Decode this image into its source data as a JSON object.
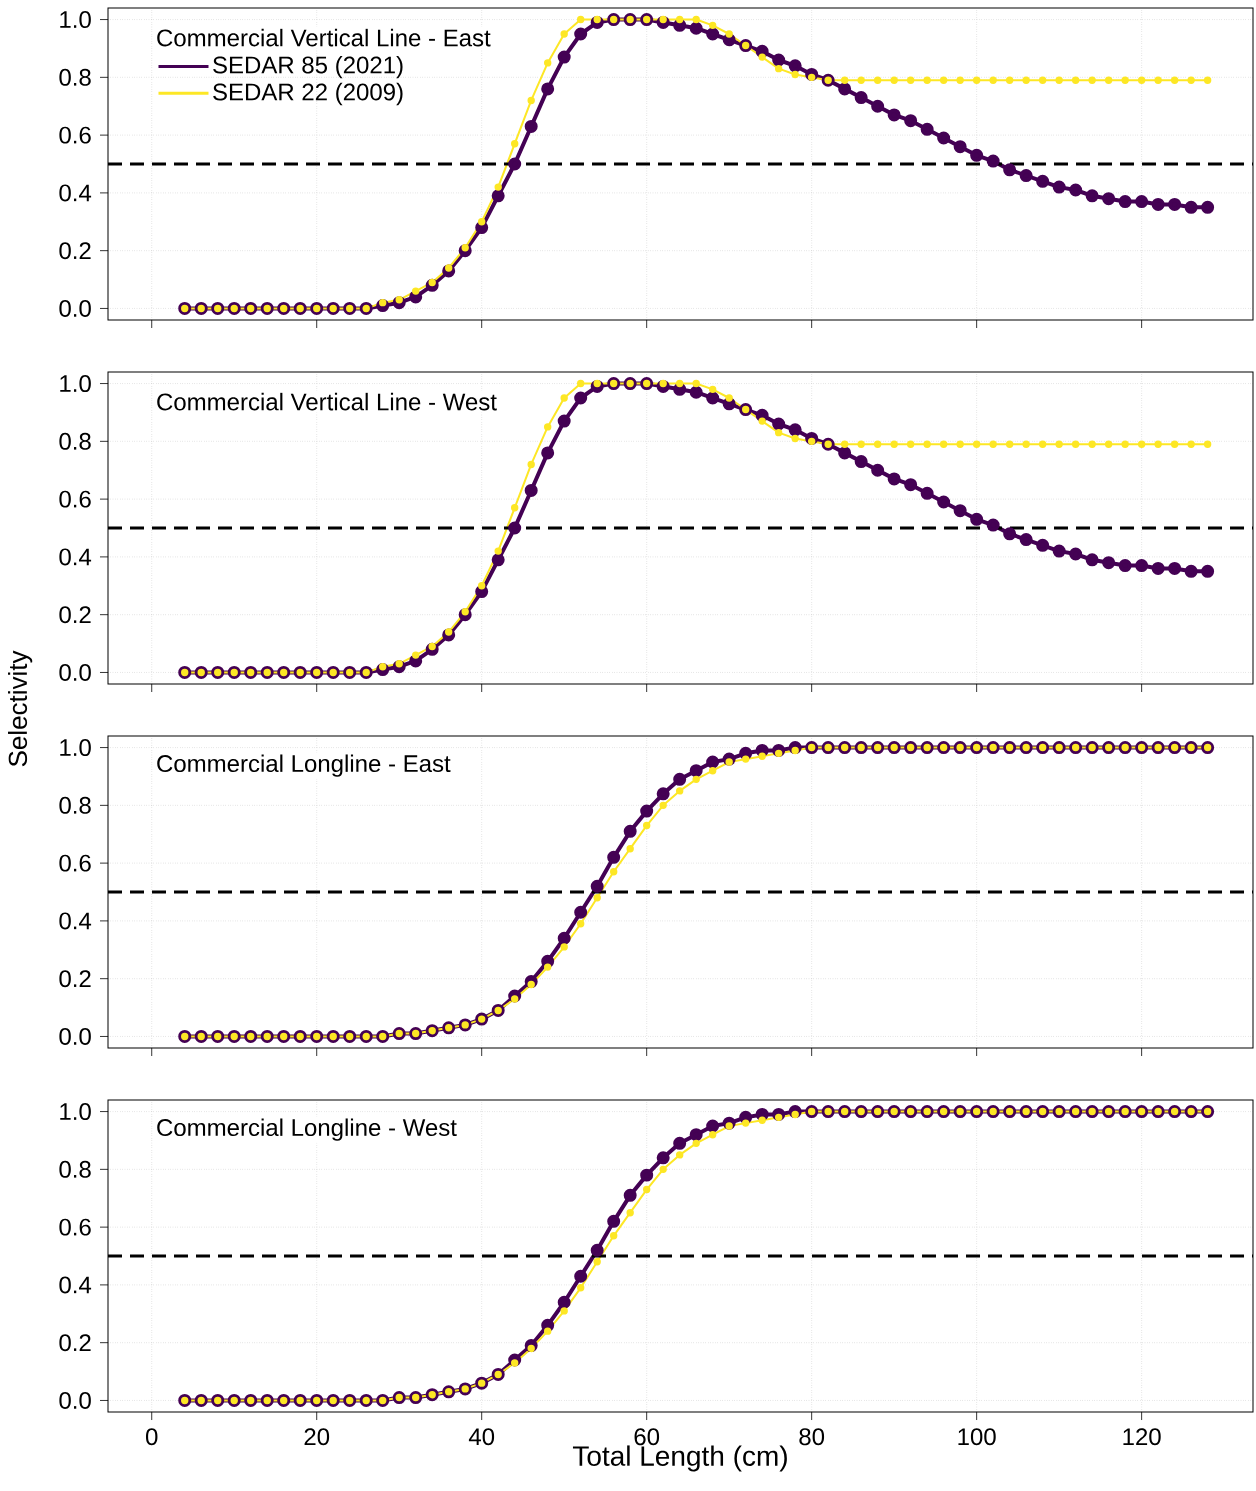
{
  "chart_data": [
    {
      "type": "line",
      "title": "Commercial Vertical Line - East",
      "legend": "top left",
      "tick_labels": "y",
      "grid": true,
      "marker": "circle",
      "line_style": "solid",
      "xlim": [
        -5.3,
        133.5
      ],
      "ylim": [
        -0.04,
        1.04
      ],
      "xticks": [
        0,
        20,
        40,
        60,
        80,
        100,
        120
      ],
      "yticks": [
        {
          "value": 0,
          "label": "0.0"
        },
        {
          "value": 0.2,
          "label": "0.2"
        },
        {
          "value": 0.4,
          "label": "0.4"
        },
        {
          "value": 0.6,
          "label": "0.6"
        },
        {
          "value": 0.8,
          "label": "0.8"
        },
        {
          "value": 1,
          "label": "1.0"
        }
      ],
      "ref_lines": [
        {
          "axis": "y",
          "value": 0.5,
          "color": "#000000",
          "line_style": "dashed"
        }
      ],
      "x": [
        4,
        6,
        8,
        10,
        12,
        14,
        16,
        18,
        20,
        22,
        24,
        26,
        28,
        30,
        32,
        34,
        36,
        38,
        40,
        42,
        44,
        46,
        48,
        50,
        52,
        54,
        56,
        58,
        60,
        62,
        64,
        66,
        68,
        70,
        72,
        74,
        76,
        78,
        80,
        82,
        84,
        86,
        88,
        90,
        92,
        94,
        96,
        98,
        100,
        102,
        104,
        106,
        108,
        110,
        112,
        114,
        116,
        118,
        120,
        122,
        124,
        126,
        128
      ],
      "series": [
        {
          "name": "SEDAR 85 (2021)",
          "color": "#440154",
          "values": [
            0,
            0,
            0,
            0,
            0,
            0,
            0,
            0,
            0,
            0,
            0,
            0,
            0.01,
            0.02,
            0.04,
            0.08,
            0.13,
            0.2,
            0.28,
            0.39,
            0.5,
            0.63,
            0.76,
            0.87,
            0.95,
            0.99,
            1,
            1,
            1,
            0.99,
            0.98,
            0.97,
            0.95,
            0.93,
            0.91,
            0.89,
            0.86,
            0.84,
            0.81,
            0.79,
            0.76,
            0.73,
            0.7,
            0.67,
            0.65,
            0.62,
            0.59,
            0.56,
            0.53,
            0.51,
            0.48,
            0.46,
            0.44,
            0.42,
            0.41,
            0.39,
            0.38,
            0.37,
            0.37,
            0.36,
            0.36,
            0.35,
            0.35
          ]
        },
        {
          "name": "SEDAR 22 (2009)",
          "color": "#fde725",
          "values": [
            0,
            0,
            0,
            0,
            0,
            0,
            0,
            0,
            0,
            0,
            0,
            0,
            0.02,
            0.03,
            0.06,
            0.09,
            0.14,
            0.21,
            0.3,
            0.42,
            0.57,
            0.72,
            0.85,
            0.95,
            1,
            1,
            1,
            1,
            1,
            1,
            1,
            1,
            0.98,
            0.95,
            0.91,
            0.87,
            0.83,
            0.81,
            0.8,
            0.79,
            0.79,
            0.79,
            0.79,
            0.79,
            0.79,
            0.79,
            0.79,
            0.79,
            0.79,
            0.79,
            0.79,
            0.79,
            0.79,
            0.79,
            0.79,
            0.79,
            0.79,
            0.79,
            0.79,
            0.79,
            0.79,
            0.79,
            0.79
          ]
        }
      ]
    },
    {
      "type": "line",
      "title": "Commercial Vertical Line - West",
      "ylabel": "Selectivity",
      "tick_labels": "y",
      "grid": true,
      "marker": "circle",
      "line_style": "solid",
      "xlim": [
        -5.3,
        133.5
      ],
      "ylim": [
        -0.04,
        1.04
      ],
      "xticks": [
        0,
        20,
        40,
        60,
        80,
        100,
        120
      ],
      "yticks": [
        {
          "value": 0,
          "label": "0.0"
        },
        {
          "value": 0.2,
          "label": "0.2"
        },
        {
          "value": 0.4,
          "label": "0.4"
        },
        {
          "value": 0.6,
          "label": "0.6"
        },
        {
          "value": 0.8,
          "label": "0.8"
        },
        {
          "value": 1,
          "label": "1.0"
        }
      ],
      "ref_lines": [
        {
          "axis": "y",
          "value": 0.5,
          "color": "#000000",
          "line_style": "dashed"
        }
      ],
      "x": [
        4,
        6,
        8,
        10,
        12,
        14,
        16,
        18,
        20,
        22,
        24,
        26,
        28,
        30,
        32,
        34,
        36,
        38,
        40,
        42,
        44,
        46,
        48,
        50,
        52,
        54,
        56,
        58,
        60,
        62,
        64,
        66,
        68,
        70,
        72,
        74,
        76,
        78,
        80,
        82,
        84,
        86,
        88,
        90,
        92,
        94,
        96,
        98,
        100,
        102,
        104,
        106,
        108,
        110,
        112,
        114,
        116,
        118,
        120,
        122,
        124,
        126,
        128
      ],
      "series": [
        {
          "color": "#440154",
          "values": [
            0,
            0,
            0,
            0,
            0,
            0,
            0,
            0,
            0,
            0,
            0,
            0,
            0.01,
            0.02,
            0.04,
            0.08,
            0.13,
            0.2,
            0.28,
            0.39,
            0.5,
            0.63,
            0.76,
            0.87,
            0.95,
            0.99,
            1,
            1,
            1,
            0.99,
            0.98,
            0.97,
            0.95,
            0.93,
            0.91,
            0.89,
            0.86,
            0.84,
            0.81,
            0.79,
            0.76,
            0.73,
            0.7,
            0.67,
            0.65,
            0.62,
            0.59,
            0.56,
            0.53,
            0.51,
            0.48,
            0.46,
            0.44,
            0.42,
            0.41,
            0.39,
            0.38,
            0.37,
            0.37,
            0.36,
            0.36,
            0.35,
            0.35
          ]
        },
        {
          "color": "#fde725",
          "values": [
            0,
            0,
            0,
            0,
            0,
            0,
            0,
            0,
            0,
            0,
            0,
            0,
            0.02,
            0.03,
            0.06,
            0.09,
            0.14,
            0.21,
            0.3,
            0.42,
            0.57,
            0.72,
            0.85,
            0.95,
            1,
            1,
            1,
            1,
            1,
            1,
            1,
            1,
            0.98,
            0.95,
            0.91,
            0.87,
            0.83,
            0.81,
            0.8,
            0.79,
            0.79,
            0.79,
            0.79,
            0.79,
            0.79,
            0.79,
            0.79,
            0.79,
            0.79,
            0.79,
            0.79,
            0.79,
            0.79,
            0.79,
            0.79,
            0.79,
            0.79,
            0.79,
            0.79,
            0.79,
            0.79,
            0.79,
            0.79
          ]
        }
      ]
    },
    {
      "type": "line",
      "title": "Commercial Longline - East",
      "tick_labels": "y",
      "grid": true,
      "marker": "circle",
      "line_style": "solid",
      "xlim": [
        -5.3,
        133.5
      ],
      "ylim": [
        -0.04,
        1.04
      ],
      "xticks": [
        0,
        20,
        40,
        60,
        80,
        100,
        120
      ],
      "yticks": [
        {
          "value": 0,
          "label": "0.0"
        },
        {
          "value": 0.2,
          "label": "0.2"
        },
        {
          "value": 0.4,
          "label": "0.4"
        },
        {
          "value": 0.6,
          "label": "0.6"
        },
        {
          "value": 0.8,
          "label": "0.8"
        },
        {
          "value": 1,
          "label": "1.0"
        }
      ],
      "ref_lines": [
        {
          "axis": "y",
          "value": 0.5,
          "color": "#000000",
          "line_style": "dashed"
        }
      ],
      "x": [
        4,
        6,
        8,
        10,
        12,
        14,
        16,
        18,
        20,
        22,
        24,
        26,
        28,
        30,
        32,
        34,
        36,
        38,
        40,
        42,
        44,
        46,
        48,
        50,
        52,
        54,
        56,
        58,
        60,
        62,
        64,
        66,
        68,
        70,
        72,
        74,
        76,
        78,
        80,
        82,
        84,
        86,
        88,
        90,
        92,
        94,
        96,
        98,
        100,
        102,
        104,
        106,
        108,
        110,
        112,
        114,
        116,
        118,
        120,
        122,
        124,
        126,
        128
      ],
      "series": [
        {
          "color": "#440154",
          "values": [
            0,
            0,
            0,
            0,
            0,
            0,
            0,
            0,
            0,
            0,
            0,
            0,
            0,
            0.01,
            0.01,
            0.02,
            0.03,
            0.04,
            0.06,
            0.09,
            0.14,
            0.19,
            0.26,
            0.34,
            0.43,
            0.52,
            0.62,
            0.71,
            0.78,
            0.84,
            0.89,
            0.92,
            0.95,
            0.96,
            0.98,
            0.99,
            0.99,
            1,
            1,
            1,
            1,
            1,
            1,
            1,
            1,
            1,
            1,
            1,
            1,
            1,
            1,
            1,
            1,
            1,
            1,
            1,
            1,
            1,
            1,
            1,
            1,
            1,
            1
          ]
        },
        {
          "color": "#fde725",
          "values": [
            0,
            0,
            0,
            0,
            0,
            0,
            0,
            0,
            0,
            0,
            0,
            0,
            0,
            0.01,
            0.01,
            0.02,
            0.03,
            0.04,
            0.06,
            0.09,
            0.13,
            0.18,
            0.24,
            0.31,
            0.39,
            0.48,
            0.57,
            0.65,
            0.73,
            0.8,
            0.85,
            0.89,
            0.92,
            0.95,
            0.96,
            0.97,
            0.98,
            0.99,
            1,
            1,
            1,
            1,
            1,
            1,
            1,
            1,
            1,
            1,
            1,
            1,
            1,
            1,
            1,
            1,
            1,
            1,
            1,
            1,
            1,
            1,
            1,
            1,
            1
          ]
        }
      ]
    },
    {
      "type": "line",
      "title": "Commercial Longline - West",
      "xlabel": "Total Length (cm)",
      "grid": true,
      "marker": "circle",
      "line_style": "solid",
      "xlim": [
        -5.3,
        133.5
      ],
      "ylim": [
        -0.04,
        1.04
      ],
      "xticks": [
        0,
        20,
        40,
        60,
        80,
        100,
        120
      ],
      "yticks": [
        {
          "value": 0,
          "label": "0.0"
        },
        {
          "value": 0.2,
          "label": "0.2"
        },
        {
          "value": 0.4,
          "label": "0.4"
        },
        {
          "value": 0.6,
          "label": "0.6"
        },
        {
          "value": 0.8,
          "label": "0.8"
        },
        {
          "value": 1,
          "label": "1.0"
        }
      ],
      "ref_lines": [
        {
          "axis": "y",
          "value": 0.5,
          "color": "#000000",
          "line_style": "dashed"
        }
      ],
      "x": [
        4,
        6,
        8,
        10,
        12,
        14,
        16,
        18,
        20,
        22,
        24,
        26,
        28,
        30,
        32,
        34,
        36,
        38,
        40,
        42,
        44,
        46,
        48,
        50,
        52,
        54,
        56,
        58,
        60,
        62,
        64,
        66,
        68,
        70,
        72,
        74,
        76,
        78,
        80,
        82,
        84,
        86,
        88,
        90,
        92,
        94,
        96,
        98,
        100,
        102,
        104,
        106,
        108,
        110,
        112,
        114,
        116,
        118,
        120,
        122,
        124,
        126,
        128
      ],
      "series": [
        {
          "color": "#440154",
          "values": [
            0,
            0,
            0,
            0,
            0,
            0,
            0,
            0,
            0,
            0,
            0,
            0,
            0,
            0.01,
            0.01,
            0.02,
            0.03,
            0.04,
            0.06,
            0.09,
            0.14,
            0.19,
            0.26,
            0.34,
            0.43,
            0.52,
            0.62,
            0.71,
            0.78,
            0.84,
            0.89,
            0.92,
            0.95,
            0.96,
            0.98,
            0.99,
            0.99,
            1,
            1,
            1,
            1,
            1,
            1,
            1,
            1,
            1,
            1,
            1,
            1,
            1,
            1,
            1,
            1,
            1,
            1,
            1,
            1,
            1,
            1,
            1,
            1,
            1,
            1
          ]
        },
        {
          "color": "#fde725",
          "values": [
            0,
            0,
            0,
            0,
            0,
            0,
            0,
            0,
            0,
            0,
            0,
            0,
            0,
            0.01,
            0.01,
            0.02,
            0.03,
            0.04,
            0.06,
            0.09,
            0.13,
            0.18,
            0.24,
            0.31,
            0.39,
            0.48,
            0.57,
            0.65,
            0.73,
            0.8,
            0.85,
            0.89,
            0.92,
            0.95,
            0.96,
            0.97,
            0.98,
            0.99,
            1,
            1,
            1,
            1,
            1,
            1,
            1,
            1,
            1,
            1,
            1,
            1,
            1,
            1,
            1,
            1,
            1,
            1,
            1,
            1,
            1,
            1,
            1,
            1,
            1
          ]
        }
      ]
    }
  ]
}
